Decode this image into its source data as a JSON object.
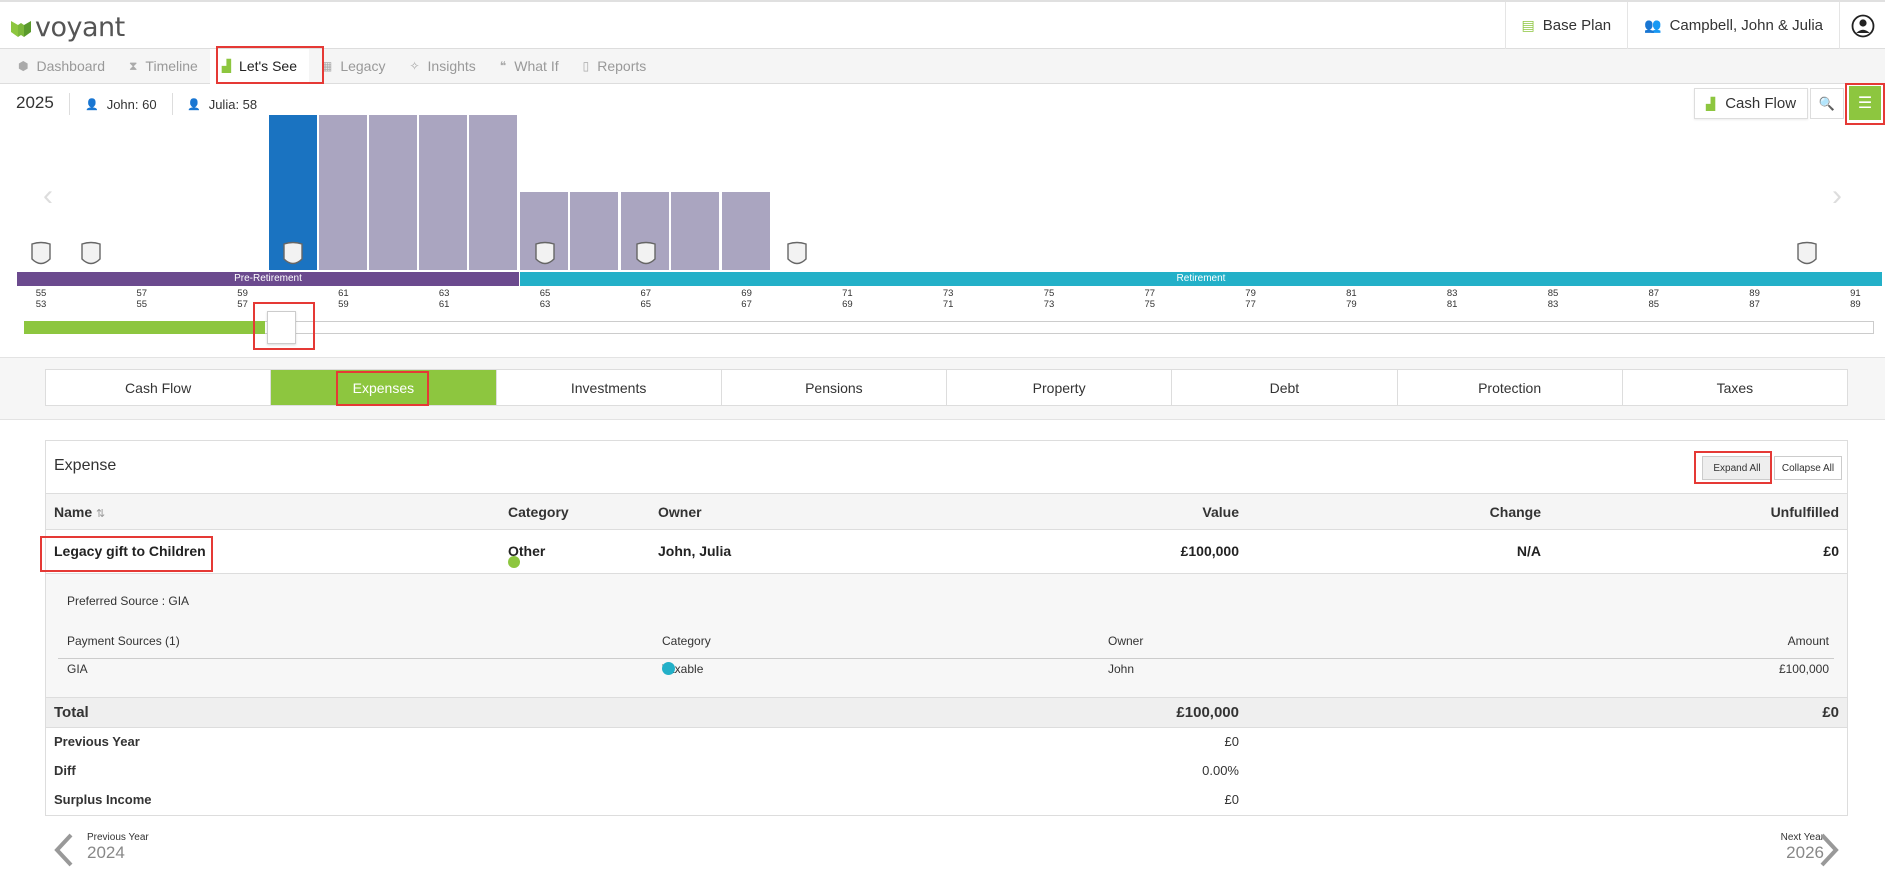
{
  "app": {
    "brand": "voyant",
    "colors": {
      "accent": "#8dc63f",
      "current_year_bar": "#1a73c1",
      "future_bar": "#aaa5c0",
      "pre_retirement": "#6b4a8e",
      "retirement": "#23b0c8",
      "highlight": "#e53935"
    }
  },
  "topbar": {
    "plan_label": "Base Plan",
    "client_label": "Campbell, John & Julia"
  },
  "nav": {
    "items": [
      {
        "label": "Dashboard",
        "icon": "cube-icon"
      },
      {
        "label": "Timeline",
        "icon": "hourglass-icon"
      },
      {
        "label": "Let's See",
        "icon": "bar-chart-icon"
      },
      {
        "label": "Legacy",
        "icon": "gift-icon"
      },
      {
        "label": "Insights",
        "icon": "lightbulb-icon"
      },
      {
        "label": "What If",
        "icon": "comments-icon"
      },
      {
        "label": "Reports",
        "icon": "file-pdf-icon"
      }
    ]
  },
  "header": {
    "year": "2025",
    "john": "John: 60",
    "julia": "Julia: 58",
    "view_label": "Cash Flow"
  },
  "timeline": {
    "phases": {
      "pre": "Pre-Retirement",
      "retirement": "Retirement"
    },
    "ages_top": [
      "55",
      "57",
      "59",
      "61",
      "63",
      "65",
      "67",
      "69",
      "71",
      "73",
      "75",
      "77",
      "79",
      "81",
      "83",
      "85",
      "87",
      "89",
      "91"
    ],
    "ages_bottom": [
      "53",
      "55",
      "57",
      "59",
      "61",
      "63",
      "65",
      "67",
      "69",
      "71",
      "73",
      "75",
      "77",
      "79",
      "81",
      "83",
      "85",
      "87",
      "89"
    ],
    "slider_progress": 0.13
  },
  "tabs": [
    "Cash Flow",
    "Expenses",
    "Investments",
    "Pensions",
    "Property",
    "Debt",
    "Protection",
    "Taxes"
  ],
  "expense": {
    "title": "Expense",
    "expand_label": "Expand All",
    "collapse_label": "Collapse All",
    "columns": {
      "name": "Name",
      "category": "Category",
      "owner": "Owner",
      "value": "Value",
      "change": "Change",
      "unfulfilled": "Unfulfilled"
    },
    "row": {
      "name": "Legacy gift to Children",
      "category": "Other",
      "owner": "John, Julia",
      "value": "£100,000",
      "change": "N/A",
      "unfulfilled": "£0"
    },
    "detail": {
      "preferred_source": "Preferred Source : GIA",
      "columns": {
        "sources": "Payment Sources (1)",
        "category": "Category",
        "owner": "Owner",
        "amount": "Amount"
      },
      "row": {
        "source": "GIA",
        "category": "Taxable",
        "owner": "John",
        "amount": "£100,000"
      }
    },
    "total": {
      "label": "Total",
      "value": "£100,000",
      "unfulfilled": "£0"
    },
    "summary": [
      {
        "label": "Previous Year",
        "value": "£0"
      },
      {
        "label": "Diff",
        "value": "0.00%"
      },
      {
        "label": "Surplus Income",
        "value": "£0"
      }
    ]
  },
  "pager": {
    "prev_caption": "Previous Year",
    "prev_year": "2024",
    "next_caption": "Next Year",
    "next_year": "2026"
  }
}
